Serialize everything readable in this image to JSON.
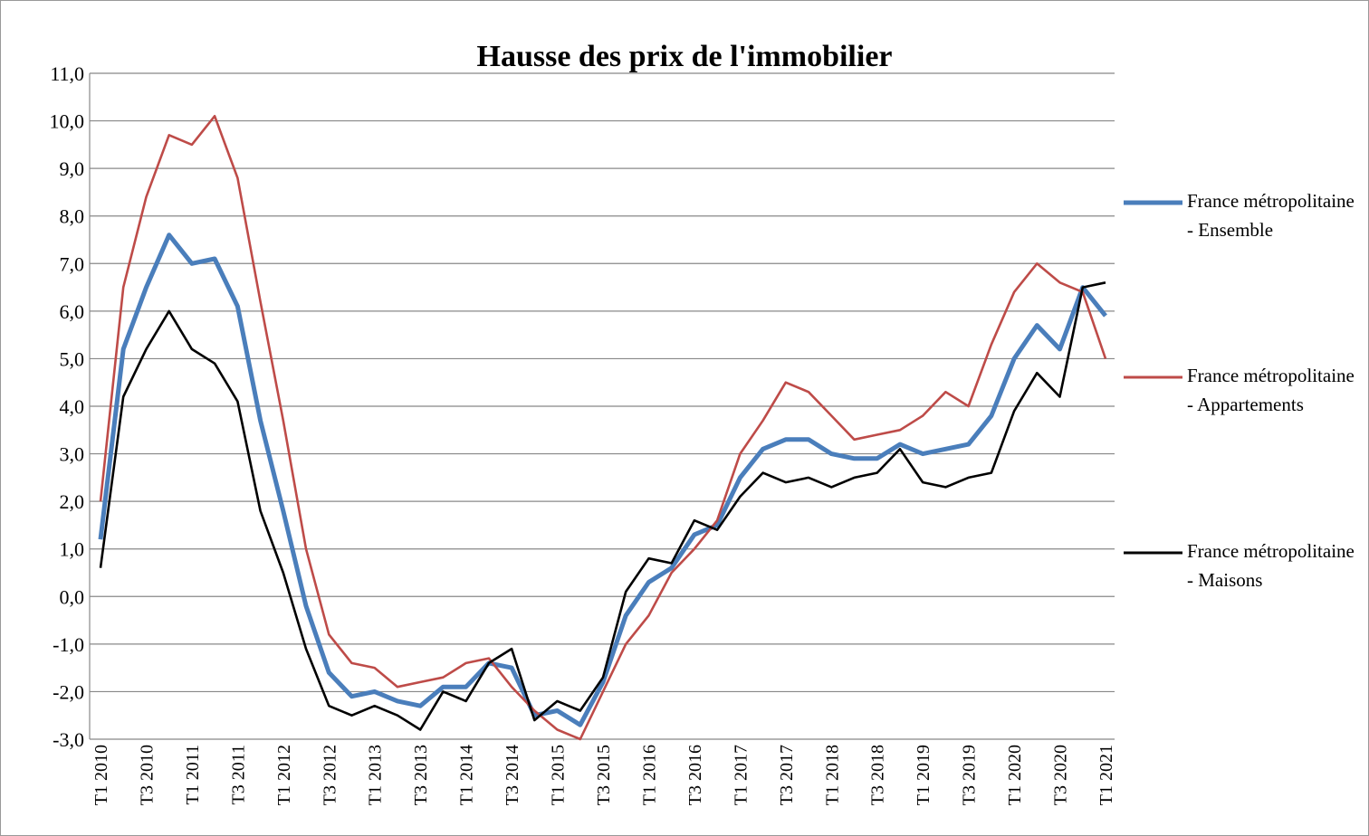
{
  "chart_data": {
    "type": "line",
    "title": "Hausse des prix de l'immobilier",
    "categories": [
      "T1 2010",
      null,
      "T3 2010",
      null,
      "T1 2011",
      null,
      "T3 2011",
      null,
      "T1 2012",
      null,
      "T3 2012",
      null,
      "T1 2013",
      null,
      "T3 2013",
      null,
      "T1 2014",
      null,
      "T3 2014",
      null,
      "T1 2015",
      null,
      "T3 2015",
      null,
      "T1 2016",
      null,
      "T3 2016",
      null,
      "T1 2017",
      null,
      "T3 2017",
      null,
      "T1 2018",
      null,
      "T3 2018",
      null,
      "T1 2019",
      null,
      "T3 2019",
      null,
      "T1 2020",
      null,
      "T3 2020",
      null,
      "T1 2021"
    ],
    "series": [
      {
        "name": "France métropolitaine - Ensemble",
        "color": "#4a7ebb",
        "values": [
          1.2,
          5.2,
          6.5,
          7.6,
          7.0,
          7.1,
          6.1,
          3.7,
          1.8,
          -0.2,
          -1.6,
          -2.1,
          -2.0,
          -2.2,
          -2.3,
          -1.9,
          -1.9,
          -1.4,
          -1.5,
          -2.5,
          -2.4,
          -2.7,
          -1.8,
          -0.4,
          0.3,
          0.6,
          1.3,
          1.5,
          2.5,
          3.1,
          3.3,
          3.3,
          3.0,
          2.9,
          2.9,
          3.2,
          3.0,
          3.1,
          3.2,
          3.8,
          5.0,
          5.7,
          5.2,
          6.5,
          5.9
        ]
      },
      {
        "name": "France métropolitaine - Appartements",
        "color": "#be4b48",
        "values": [
          2.0,
          6.5,
          8.4,
          9.7,
          9.5,
          10.1,
          8.8,
          6.2,
          3.7,
          1.0,
          -0.8,
          -1.4,
          -1.5,
          -1.9,
          -1.8,
          -1.7,
          -1.4,
          -1.3,
          -1.9,
          -2.4,
          -2.8,
          -3.0,
          -2.0,
          -1.0,
          -0.4,
          0.5,
          1.0,
          1.6,
          3.0,
          3.7,
          4.5,
          4.3,
          3.8,
          3.3,
          3.4,
          3.5,
          3.8,
          4.3,
          4.0,
          5.3,
          6.4,
          7.0,
          6.6,
          6.4,
          5.0
        ]
      },
      {
        "name": "France métropolitaine - Maisons",
        "color": "#000000",
        "values": [
          0.6,
          4.2,
          5.2,
          6.0,
          5.2,
          4.9,
          4.1,
          1.8,
          0.5,
          -1.1,
          -2.3,
          -2.5,
          -2.3,
          -2.5,
          -2.8,
          -2.0,
          -2.2,
          -1.4,
          -1.1,
          -2.6,
          -2.2,
          -2.4,
          -1.7,
          0.1,
          0.8,
          0.7,
          1.6,
          1.4,
          2.1,
          2.6,
          2.4,
          2.5,
          2.3,
          2.5,
          2.6,
          3.1,
          2.4,
          2.3,
          2.5,
          2.6,
          3.9,
          4.7,
          4.2,
          6.5,
          6.6
        ]
      }
    ],
    "ylim": [
      -3,
      11
    ],
    "yticks": [
      {
        "value": -3,
        "label": "-3,0"
      },
      {
        "value": -2,
        "label": "-2,0"
      },
      {
        "value": -1,
        "label": "-1,0"
      },
      {
        "value": 0,
        "label": "0,0"
      },
      {
        "value": 1,
        "label": "1,0"
      },
      {
        "value": 2,
        "label": "2,0"
      },
      {
        "value": 3,
        "label": "3,0"
      },
      {
        "value": 4,
        "label": "4,0"
      },
      {
        "value": 5,
        "label": "5,0"
      },
      {
        "value": 6,
        "label": "6,0"
      },
      {
        "value": 7,
        "label": "7,0"
      },
      {
        "value": 8,
        "label": "8,0"
      },
      {
        "value": 9,
        "label": "9,0"
      },
      {
        "value": 10,
        "label": "10,0"
      },
      {
        "value": 11,
        "label": "11,0"
      }
    ],
    "grid": true,
    "legend": "right"
  }
}
